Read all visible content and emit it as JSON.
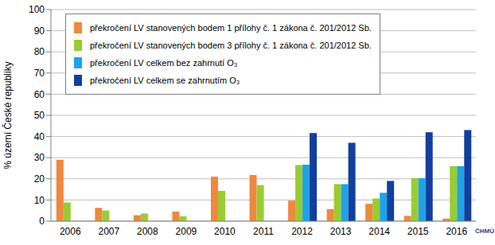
{
  "chart_data": {
    "type": "bar",
    "y_label": "% území České republiky",
    "categories": [
      "2006",
      "2007",
      "2008",
      "2009",
      "2010",
      "2011",
      "2012",
      "2013",
      "2014",
      "2015",
      "2016"
    ],
    "series": [
      {
        "name": "překročení LV stanovených bodem 1 přílohy č. 1 zákona č. 201/2012 Sb.",
        "color": "#f0883e",
        "values": [
          29,
          6.3,
          2.8,
          4.5,
          21,
          21.8,
          9.7,
          5.7,
          8.2,
          2.5,
          1.2
        ]
      },
      {
        "name": "překročení LV stanovených bodem 3 přílohy č. 1 zákona č. 201/2012 Sb.",
        "color": "#99cc33",
        "values": [
          8.8,
          5,
          3.6,
          2.3,
          14.3,
          17,
          26.5,
          17.5,
          10.7,
          20.3,
          26
        ]
      },
      {
        "name": "překročení LV celkem bez zahrnutí O₃",
        "color": "#1fa3e6",
        "values": [
          null,
          null,
          null,
          null,
          null,
          null,
          26.7,
          17.5,
          13.4,
          20.3,
          26
        ]
      },
      {
        "name": "překročení LV celkem se zahrnutím O₃",
        "color": "#123f9e",
        "values": [
          null,
          null,
          null,
          null,
          null,
          null,
          41.6,
          37,
          19,
          42,
          43
        ]
      }
    ],
    "ylim": [
      0,
      100
    ],
    "yticks": [
      0,
      10,
      20,
      30,
      40,
      50,
      60,
      70,
      80,
      90,
      100
    ],
    "grid": true,
    "legend": "upper left",
    "annotations": [
      "ČHMÚ"
    ]
  }
}
